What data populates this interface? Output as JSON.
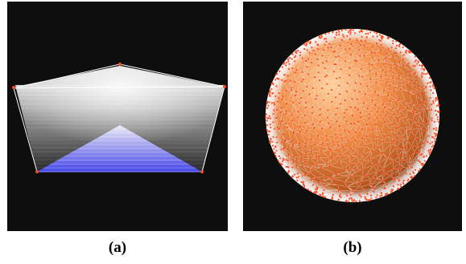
{
  "figure": {
    "panels": [
      {
        "id": "a",
        "caption": "(a)",
        "fill_colors": {
          "background": "#0e0e0e",
          "top_shade": "#f2f2f2",
          "inner_triangle": "#6a6cff",
          "edge": "#ffffff",
          "vertex": "#ff4a1f"
        }
      },
      {
        "id": "b",
        "caption": "(b)",
        "fill_colors": {
          "background": "#0e0e0e",
          "sphere": "#f08a45",
          "mesh": "#e8eef4",
          "vertex": "#ff4a1f"
        }
      }
    ]
  }
}
